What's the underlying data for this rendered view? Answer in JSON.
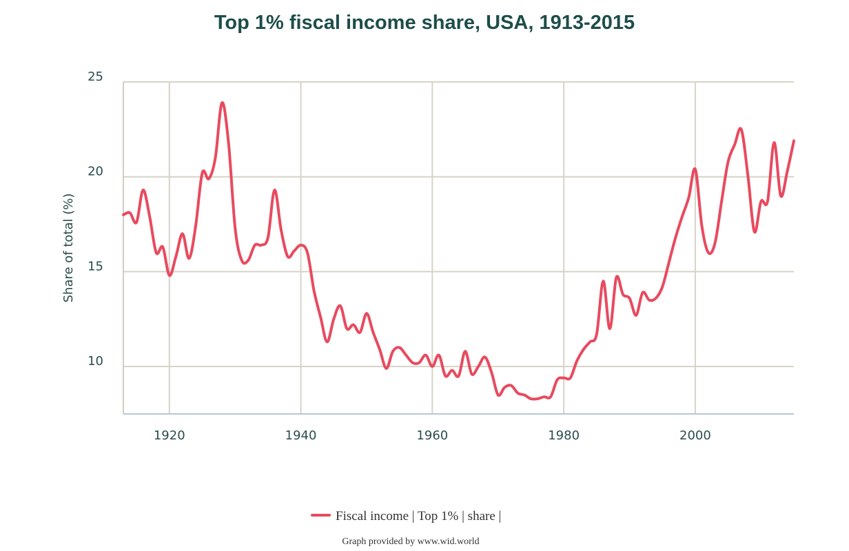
{
  "chart_data": {
    "type": "line",
    "title": "Top 1% fiscal income share, USA, 1913-2015",
    "xlabel": "",
    "ylabel": "Share of total (%)",
    "xlim": [
      1913,
      2015
    ],
    "ylim": [
      7.5,
      25
    ],
    "x_ticks": [
      1920,
      1940,
      1960,
      1980,
      2000
    ],
    "y_ticks": [
      10,
      15,
      20,
      25
    ],
    "grid": true,
    "legend_position": "bottom-center",
    "series": [
      {
        "name": "Fiscal income | Top 1% | share |",
        "color": "#e84a5f",
        "x": [
          1913,
          1914,
          1915,
          1916,
          1917,
          1918,
          1919,
          1920,
          1921,
          1922,
          1923,
          1924,
          1925,
          1926,
          1927,
          1928,
          1929,
          1930,
          1931,
          1932,
          1933,
          1934,
          1935,
          1936,
          1937,
          1938,
          1939,
          1940,
          1941,
          1942,
          1943,
          1944,
          1945,
          1946,
          1947,
          1948,
          1949,
          1950,
          1951,
          1952,
          1953,
          1954,
          1955,
          1956,
          1957,
          1958,
          1959,
          1960,
          1961,
          1962,
          1963,
          1964,
          1965,
          1966,
          1967,
          1968,
          1969,
          1970,
          1971,
          1972,
          1973,
          1974,
          1975,
          1976,
          1977,
          1978,
          1979,
          1980,
          1981,
          1982,
          1983,
          1984,
          1985,
          1986,
          1987,
          1988,
          1989,
          1990,
          1991,
          1992,
          1993,
          1994,
          1995,
          1996,
          1997,
          1998,
          1999,
          2000,
          2001,
          2002,
          2003,
          2004,
          2005,
          2006,
          2007,
          2008,
          2009,
          2010,
          2011,
          2012,
          2013,
          2014,
          2015
        ],
        "values": [
          18.0,
          18.1,
          17.6,
          19.3,
          17.9,
          16.0,
          16.3,
          14.8,
          15.8,
          17.0,
          15.7,
          17.4,
          20.2,
          19.9,
          21.0,
          23.9,
          21.8,
          17.3,
          15.6,
          15.6,
          16.4,
          16.4,
          16.8,
          19.3,
          17.2,
          15.8,
          16.1,
          16.4,
          16.0,
          14.0,
          12.6,
          11.3,
          12.5,
          13.2,
          12.0,
          12.2,
          11.8,
          12.8,
          11.8,
          10.9,
          9.9,
          10.8,
          11.0,
          10.6,
          10.2,
          10.2,
          10.6,
          10.0,
          10.6,
          9.5,
          9.8,
          9.5,
          10.8,
          9.6,
          10.0,
          10.5,
          9.7,
          8.5,
          8.9,
          9.0,
          8.6,
          8.5,
          8.3,
          8.3,
          8.4,
          8.4,
          9.3,
          9.4,
          9.4,
          10.3,
          10.9,
          11.3,
          11.7,
          14.5,
          12.0,
          14.7,
          13.8,
          13.6,
          12.7,
          13.9,
          13.5,
          13.6,
          14.2,
          15.5,
          16.8,
          17.9,
          18.9,
          20.4,
          17.4,
          16.0,
          16.5,
          18.7,
          20.8,
          21.7,
          22.5,
          20.1,
          17.1,
          18.7,
          18.7,
          21.8,
          19.0,
          20.3,
          21.9
        ]
      }
    ]
  },
  "credit": "Graph provided by www.wid.world"
}
